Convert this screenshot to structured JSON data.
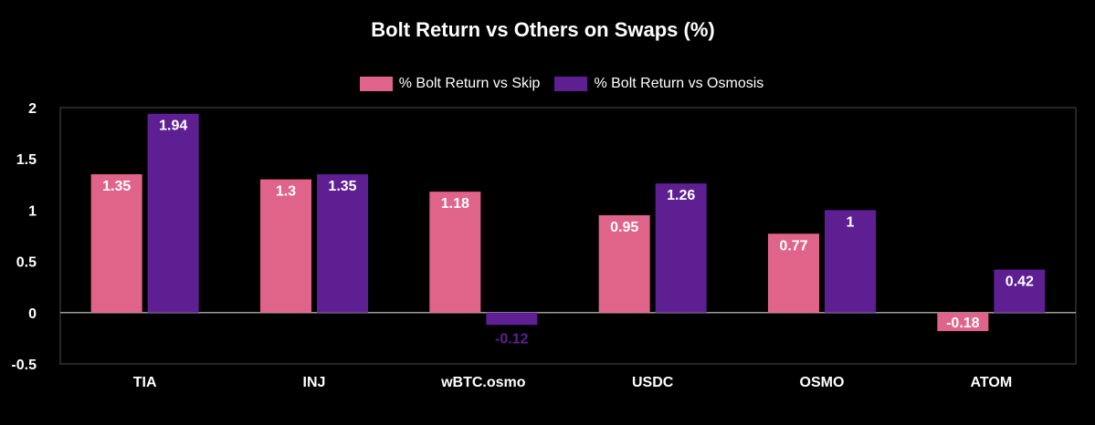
{
  "chart_data": {
    "type": "bar",
    "title": "Bolt Return vs Others on Swaps (%)",
    "xlabel": "",
    "ylabel": "",
    "ylim": [
      -0.5,
      2
    ],
    "yticks": [
      "2",
      "1.5",
      "1",
      "0.5",
      "0",
      "-0.5"
    ],
    "ytick_values": [
      2,
      1.5,
      1,
      0.5,
      0,
      -0.5
    ],
    "categories": [
      "TIA",
      "INJ",
      "wBTC.osmo",
      "USDC",
      "OSMO",
      "ATOM"
    ],
    "series": [
      {
        "name": "% Bolt Return vs Skip",
        "color": "#e0648a",
        "values": [
          1.35,
          1.3,
          1.18,
          0.95,
          0.77,
          -0.18
        ],
        "labels": [
          "1.35",
          "1.3",
          "1.18",
          "0.95",
          "0.77",
          "-0.18"
        ]
      },
      {
        "name": "% Bolt Return vs Osmosis",
        "color": "#5e1f93",
        "values": [
          1.94,
          1.35,
          -0.12,
          1.26,
          1,
          0.42
        ],
        "labels": [
          "1.94",
          "1.35",
          "-0.12",
          "1.26",
          "1",
          "0.42"
        ]
      }
    ],
    "legend_position": "top-center",
    "grid": false
  }
}
